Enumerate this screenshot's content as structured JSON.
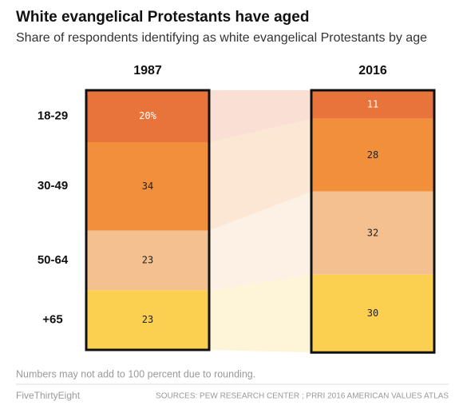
{
  "chart_data": {
    "type": "stacked-bar",
    "title": "White evangelical Protestants have aged",
    "subtitle": "Share of respondents identifying as white evangelical Protestants by age",
    "categories": [
      "1987",
      "2016"
    ],
    "series": [
      {
        "name": "18-29",
        "color": "#e8743b",
        "values": [
          20,
          11
        ],
        "value_labels": [
          "20%",
          "11"
        ]
      },
      {
        "name": "30-49",
        "color": "#f28f3b",
        "values": [
          34,
          28
        ]
      },
      {
        "name": "50-64",
        "color": "#f5c08f",
        "values": [
          23,
          32
        ]
      },
      {
        "name": "+65",
        "color": "#fbcf4f",
        "values": [
          23,
          30
        ]
      }
    ],
    "note": "Numbers may not add to 100 percent due to rounding.",
    "brand": "FiveThirtyEight",
    "source": "SOURCES: PEW RESEARCH CENTER ; PRRI 2016 AMERICAN VALUES ATLAS"
  }
}
